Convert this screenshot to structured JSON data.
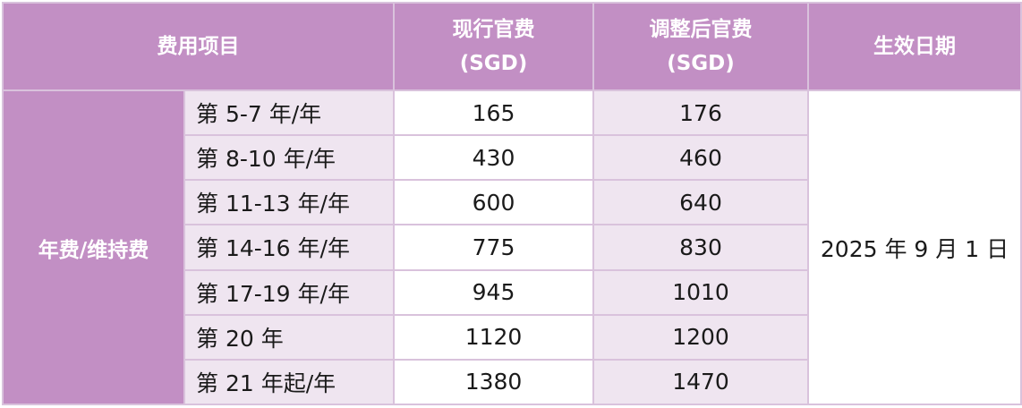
{
  "header": {
    "item": "费用项目",
    "current_fee": [
      "现行官费",
      "(SGD)"
    ],
    "adjusted_fee": [
      "调整后官费",
      "(SGD)"
    ],
    "effective_date": "生效日期"
  },
  "category": "年费/维持费",
  "effective_date_value": "2025 年 9 月 1 日",
  "rows": [
    {
      "period": "第 5-7 年/年",
      "current": "165",
      "adjusted": "176"
    },
    {
      "period": "第 8-10 年/年",
      "current": "430",
      "adjusted": "460"
    },
    {
      "period": "第 11-13 年/年",
      "current": "600",
      "adjusted": "640"
    },
    {
      "period": "第 14-16 年/年",
      "current": "775",
      "adjusted": "830"
    },
    {
      "period": "第 17-19 年/年",
      "current": "945",
      "adjusted": "1010"
    },
    {
      "period": "第 20 年",
      "current": "1120",
      "adjusted": "1200"
    },
    {
      "period": "第 21 年起/年",
      "current": "1380",
      "adjusted": "1470"
    }
  ],
  "colors": {
    "header_bg": "#c28fc4",
    "alt_cell_bg": "#efe5f0",
    "border": "#d9c2dc"
  }
}
